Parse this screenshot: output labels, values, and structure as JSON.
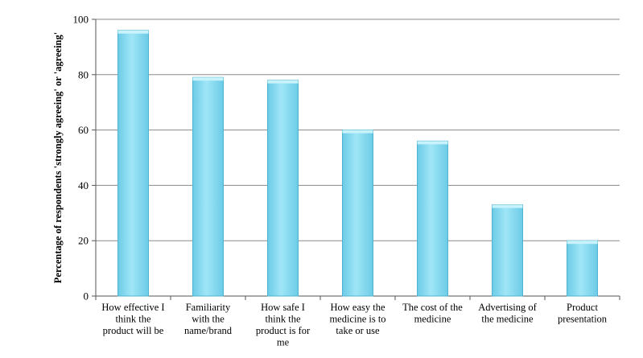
{
  "chart_data": {
    "type": "bar",
    "title": "",
    "xlabel": "",
    "ylabel": "Percentage of respondents 'strongly agreeing' or 'agreeing'",
    "ylim": [
      0,
      100
    ],
    "yticks": [
      0,
      20,
      40,
      60,
      80,
      100
    ],
    "grid": true,
    "legend": "none",
    "bar_color": "#7fd7ee",
    "bar_edge_color": "#4fb3cf",
    "categories": [
      [
        "How effective I",
        "think the",
        "product will be"
      ],
      [
        "Familiarity",
        "with the",
        "name/brand"
      ],
      [
        "How safe I",
        "think the",
        "product is for",
        "me"
      ],
      [
        "How easy the",
        "medicine is to",
        "take or use"
      ],
      [
        "The cost of the",
        "medicine"
      ],
      [
        "Advertising of",
        "the medicine"
      ],
      [
        "Product",
        "presentation"
      ]
    ],
    "values": [
      96,
      79,
      78,
      60,
      56,
      33,
      20
    ]
  }
}
